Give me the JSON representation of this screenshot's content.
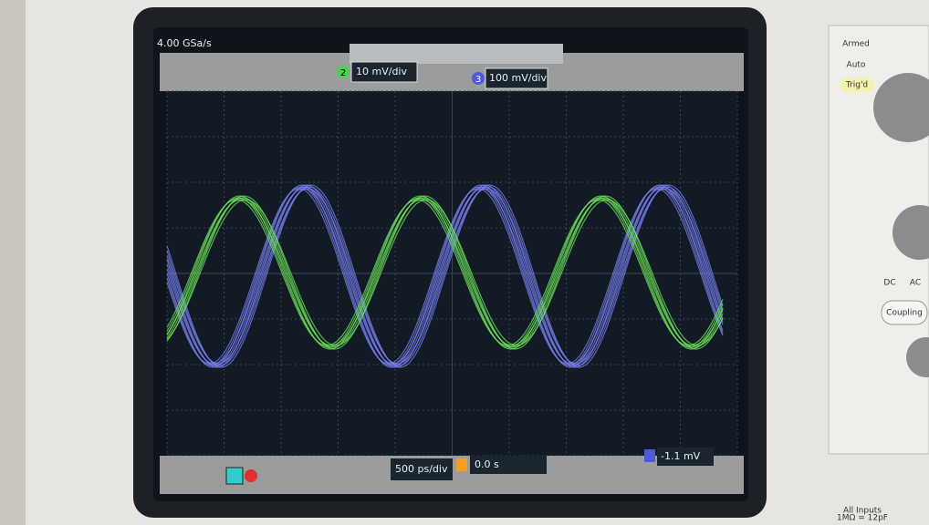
{
  "screen": {
    "sample_rate": "4.00 GSa/s",
    "channels": [
      {
        "number": "2",
        "scale": "10 mV/div"
      },
      {
        "number": "3",
        "scale": "100 mV/div"
      }
    ],
    "timebase": "500 ps/div",
    "delay": "0.0 s",
    "trigger_level": "-1.1 mV"
  },
  "panel": {
    "status": [
      "Armed",
      "Auto",
      "Trig'd"
    ],
    "coupling": [
      "DC",
      "AC"
    ],
    "button": "Coupling",
    "note": [
      "All Inputs",
      "1MΩ = 12pF"
    ]
  }
}
